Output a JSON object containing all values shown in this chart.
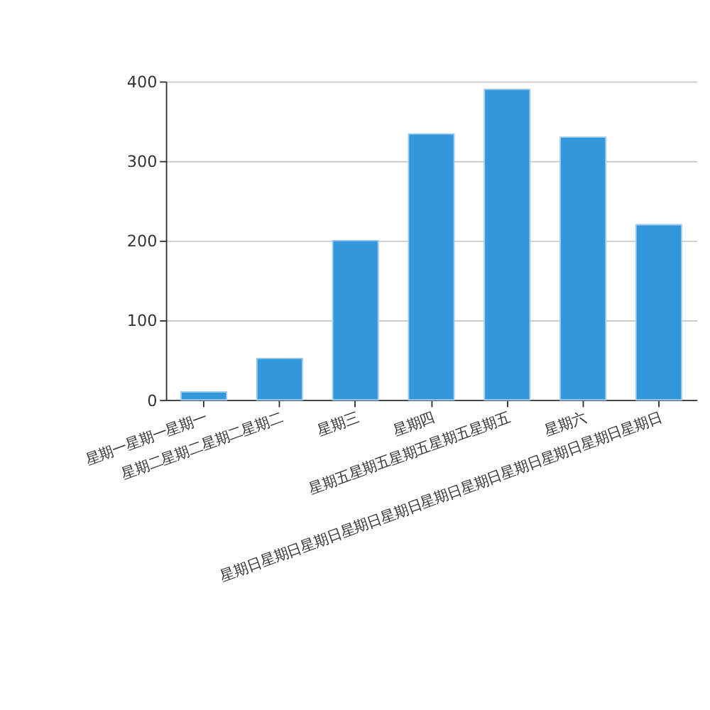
{
  "chart_data": {
    "type": "bar",
    "categories": [
      "星期一星期一星期一",
      "星期二星期二星期二星期二",
      "星期三",
      "星期四",
      "星期五星期五星期五星期五星期五",
      "星期六",
      "星期日星期日星期日星期日星期日星期日星期日星期日星期日星期日星期日"
    ],
    "values": [
      10,
      52,
      200,
      334,
      390,
      330,
      220
    ],
    "color": "#3398db",
    "ylim": [
      0,
      400
    ],
    "yticks": [
      0,
      100,
      200,
      300,
      400
    ],
    "grid": "y"
  }
}
